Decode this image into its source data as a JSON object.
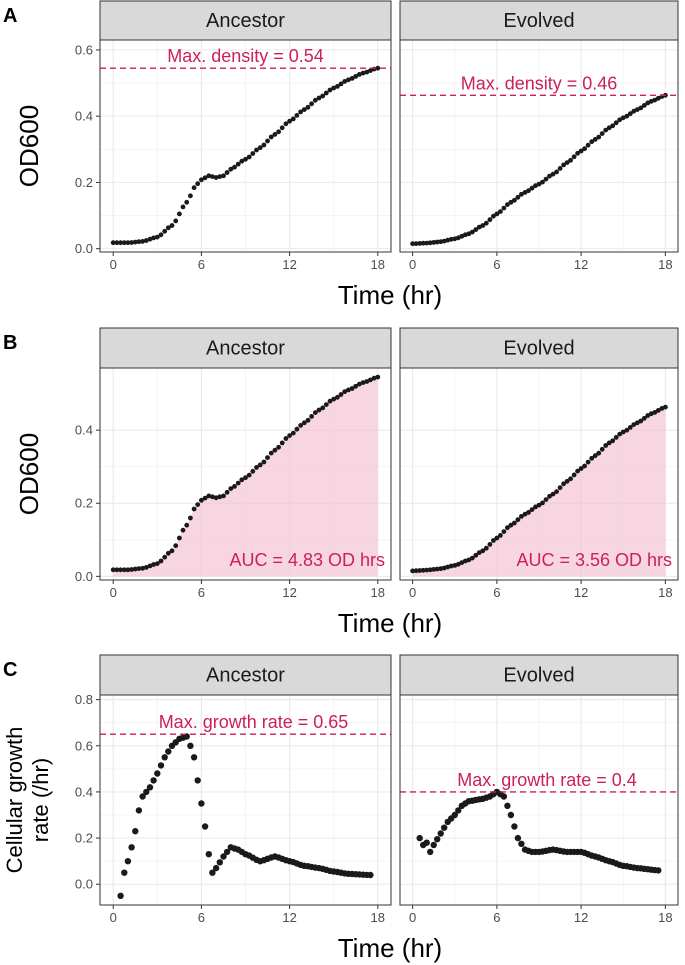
{
  "colors": {
    "accent": "#cc1f5b",
    "fill": "#f2c0d3",
    "strip_bg": "#d9d9d9",
    "point": "#1a1a1a",
    "grid": "#ebebeb"
  },
  "chart_data": [
    {
      "id": "A",
      "tag": "A",
      "type": "scatter",
      "ylabel": "OD600",
      "xlabel": "Time (hr)",
      "xlim": [
        -0.9,
        18.9
      ],
      "ylim": [
        -0.01,
        0.63
      ],
      "xticks": [
        0,
        6,
        12,
        18
      ],
      "xtick_labels": [
        "0",
        "6",
        "12",
        "18"
      ],
      "yticks": [
        0,
        0.2,
        0.4,
        0.6
      ],
      "ytick_labels": [
        "0.0",
        "0.2",
        "0.4",
        "0.6"
      ],
      "facets": [
        {
          "name": "Ancestor",
          "curve": "ancestor_od",
          "annotation": {
            "kind": "hline",
            "y": 0.545,
            "text": "Max. density = 0.54"
          }
        },
        {
          "name": "Evolved",
          "curve": "evolved_od",
          "annotation": {
            "kind": "hline",
            "y": 0.463,
            "text": "Max. density = 0.46"
          }
        }
      ]
    },
    {
      "id": "B",
      "tag": "B",
      "type": "area",
      "ylabel": "OD600",
      "xlabel": "Time (hr)",
      "xlim": [
        -0.9,
        18.9
      ],
      "ylim": [
        -0.01,
        0.57
      ],
      "xticks": [
        0,
        6,
        12,
        18
      ],
      "xtick_labels": [
        "0",
        "6",
        "12",
        "18"
      ],
      "yticks": [
        0,
        0.2,
        0.4
      ],
      "ytick_labels": [
        "0.0",
        "0.2",
        "0.4"
      ],
      "facets": [
        {
          "name": "Ancestor",
          "curve": "ancestor_od",
          "annotation": {
            "kind": "auc",
            "text": "AUC = 4.83 OD hrs"
          }
        },
        {
          "name": "Evolved",
          "curve": "evolved_od",
          "annotation": {
            "kind": "auc",
            "text": "AUC = 3.56 OD hrs"
          }
        }
      ]
    },
    {
      "id": "C",
      "tag": "C",
      "type": "scatter",
      "ylabel_lines": [
        "Cellular growth",
        "rate (/hr)"
      ],
      "xlabel": "Time (hr)",
      "xlim": [
        -0.9,
        18.9
      ],
      "ylim": [
        -0.09,
        0.82
      ],
      "xticks": [
        0,
        6,
        12,
        18
      ],
      "xtick_labels": [
        "0",
        "6",
        "12",
        "18"
      ],
      "yticks": [
        0,
        0.2,
        0.4,
        0.6,
        0.8
      ],
      "ytick_labels": [
        "0.0",
        "0.2",
        "0.4",
        "0.6",
        "0.8"
      ],
      "facets": [
        {
          "name": "Ancestor",
          "curve": "ancestor_rate",
          "annotation": {
            "kind": "hline",
            "y": 0.65,
            "text": "Max. growth rate = 0.65"
          }
        },
        {
          "name": "Evolved",
          "curve": "evolved_rate",
          "annotation": {
            "kind": "hline",
            "y": 0.4,
            "text": "Max. growth rate = 0.4"
          }
        }
      ]
    }
  ],
  "curves": {
    "ancestor_od": {
      "x_start": 0,
      "x_end": 18,
      "step": 0.25,
      "knots": [
        [
          0,
          0.018
        ],
        [
          1,
          0.018
        ],
        [
          2,
          0.022
        ],
        [
          3,
          0.035
        ],
        [
          4,
          0.07
        ],
        [
          5,
          0.14
        ],
        [
          5.6,
          0.19
        ],
        [
          6,
          0.208
        ],
        [
          6.5,
          0.22
        ],
        [
          7,
          0.215
        ],
        [
          7.5,
          0.22
        ],
        [
          8,
          0.24
        ],
        [
          9,
          0.27
        ],
        [
          10,
          0.305
        ],
        [
          11,
          0.345
        ],
        [
          12,
          0.385
        ],
        [
          13,
          0.42
        ],
        [
          14,
          0.455
        ],
        [
          15,
          0.485
        ],
        [
          16,
          0.51
        ],
        [
          17,
          0.53
        ],
        [
          18,
          0.545
        ]
      ]
    },
    "evolved_od": {
      "x_start": 0,
      "x_end": 18,
      "step": 0.25,
      "knots": [
        [
          0,
          0.015
        ],
        [
          1,
          0.017
        ],
        [
          2,
          0.021
        ],
        [
          3,
          0.03
        ],
        [
          4,
          0.045
        ],
        [
          5,
          0.07
        ],
        [
          6,
          0.105
        ],
        [
          7,
          0.14
        ],
        [
          8,
          0.17
        ],
        [
          9,
          0.195
        ],
        [
          10,
          0.225
        ],
        [
          11,
          0.26
        ],
        [
          12,
          0.295
        ],
        [
          13,
          0.33
        ],
        [
          14,
          0.365
        ],
        [
          15,
          0.395
        ],
        [
          16,
          0.42
        ],
        [
          17,
          0.445
        ],
        [
          18,
          0.463
        ]
      ]
    },
    "ancestor_rate": {
      "x_start": 0.5,
      "x_end": 17.5,
      "step": 0.25,
      "knots": [
        [
          0.5,
          -0.05
        ],
        [
          0.75,
          0.05
        ],
        [
          1,
          0.1
        ],
        [
          1.25,
          0.16
        ],
        [
          1.5,
          0.23
        ],
        [
          1.75,
          0.32
        ],
        [
          2,
          0.38
        ],
        [
          2.5,
          0.42
        ],
        [
          3,
          0.48
        ],
        [
          3.5,
          0.55
        ],
        [
          4,
          0.6
        ],
        [
          4.5,
          0.63
        ],
        [
          5,
          0.64
        ],
        [
          5.25,
          0.6
        ],
        [
          5.5,
          0.55
        ],
        [
          5.75,
          0.45
        ],
        [
          6,
          0.35
        ],
        [
          6.25,
          0.25
        ],
        [
          6.5,
          0.13
        ],
        [
          6.75,
          0.05
        ],
        [
          7,
          0.07
        ],
        [
          7.5,
          0.12
        ],
        [
          8,
          0.16
        ],
        [
          8.5,
          0.15
        ],
        [
          9,
          0.13
        ],
        [
          10,
          0.1
        ],
        [
          11,
          0.12
        ],
        [
          12,
          0.1
        ],
        [
          13,
          0.08
        ],
        [
          14,
          0.07
        ],
        [
          15,
          0.055
        ],
        [
          16,
          0.045
        ],
        [
          17.5,
          0.04
        ]
      ]
    },
    "evolved_rate": {
      "x_start": 0.5,
      "x_end": 17.5,
      "step": 0.25,
      "knots": [
        [
          0.5,
          0.2
        ],
        [
          0.75,
          0.17
        ],
        [
          1,
          0.18
        ],
        [
          1.25,
          0.14
        ],
        [
          1.5,
          0.17
        ],
        [
          2,
          0.22
        ],
        [
          2.5,
          0.27
        ],
        [
          3,
          0.3
        ],
        [
          3.5,
          0.34
        ],
        [
          4,
          0.36
        ],
        [
          5,
          0.37
        ],
        [
          5.5,
          0.38
        ],
        [
          6,
          0.4
        ],
        [
          6.5,
          0.38
        ],
        [
          7,
          0.3
        ],
        [
          7.5,
          0.2
        ],
        [
          8,
          0.15
        ],
        [
          8.5,
          0.14
        ],
        [
          9,
          0.14
        ],
        [
          10,
          0.15
        ],
        [
          11,
          0.14
        ],
        [
          12,
          0.14
        ],
        [
          13,
          0.12
        ],
        [
          14,
          0.1
        ],
        [
          15,
          0.08
        ],
        [
          16,
          0.07
        ],
        [
          17.5,
          0.06
        ]
      ]
    }
  }
}
